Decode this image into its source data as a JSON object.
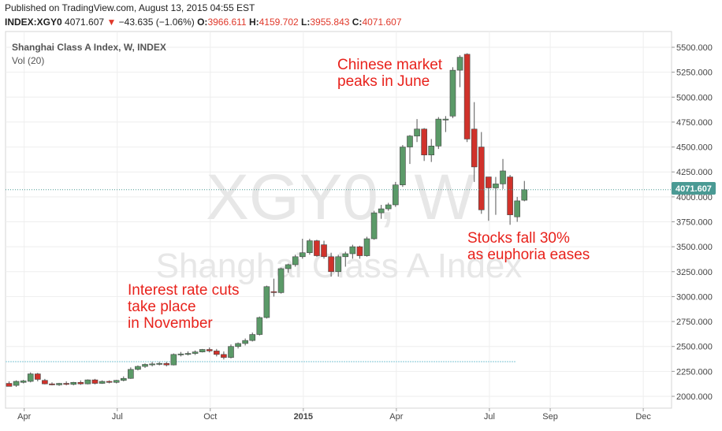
{
  "header": {
    "published": "Published on TradingView.com, August 13, 2015 04:55 EST",
    "symbol": "INDEX:XGY0",
    "last": "4071.607",
    "change_arrow": "▼",
    "change": "−43.635 (−1.06%)",
    "open_label": "O:",
    "open": "3966.611",
    "high_label": "H:",
    "high": "4159.702",
    "low_label": "L:",
    "low": "3955.843",
    "close_label": "C:",
    "close": "4071.607"
  },
  "legend": {
    "title": "Shanghai Class A Index, W, INDEX",
    "volume": "Vol (20)"
  },
  "watermark": {
    "big": "XGY0, W",
    "small": "Shanghai Class A Index"
  },
  "price_badge": "4071.607",
  "annotations": [
    {
      "lines": [
        "Chinese market",
        "peaks in June"
      ]
    },
    {
      "lines": [
        "Stocks fall 30%",
        "as euphoria eases"
      ]
    },
    {
      "lines": [
        "Interest rate cuts",
        "take place",
        "in November"
      ]
    }
  ],
  "colors": {
    "up": "#5b9a68",
    "down": "#d0322b",
    "annotation": "#e8221c",
    "price_line": "#4a9a94",
    "badge": "#4a9a94"
  },
  "chart_data": {
    "type": "candlestick",
    "title": "Shanghai Class A Index, W, INDEX",
    "interval": "weekly",
    "ylim": [
      1900,
      5600
    ],
    "y_ticks": [
      "5500.000",
      "5250.000",
      "5000.000",
      "4750.000",
      "4500.000",
      "4250.000",
      "4000.000",
      "3750.000",
      "3500.000",
      "3250.000",
      "3000.000",
      "2750.000",
      "2500.000",
      "2250.000",
      "2000.000"
    ],
    "x_ticks": [
      "Apr",
      "Jul",
      "Oct",
      "2015",
      "Apr",
      "Jul",
      "Sep",
      "Dec"
    ],
    "x_ticks_week_index": [
      2.5,
      15.5,
      28.5,
      41.5,
      54.5,
      67.5,
      76,
      89
    ],
    "last_price": 4071.607,
    "candles": [
      {
        "o": 2130,
        "h": 2150,
        "l": 2110,
        "c": 2100
      },
      {
        "o": 2110,
        "h": 2160,
        "l": 2095,
        "c": 2150
      },
      {
        "o": 2140,
        "h": 2165,
        "l": 2130,
        "c": 2155
      },
      {
        "o": 2150,
        "h": 2240,
        "l": 2140,
        "c": 2225
      },
      {
        "o": 2225,
        "h": 2235,
        "l": 2150,
        "c": 2170
      },
      {
        "o": 2160,
        "h": 2175,
        "l": 2120,
        "c": 2125
      },
      {
        "o": 2125,
        "h": 2140,
        "l": 2110,
        "c": 2115
      },
      {
        "o": 2115,
        "h": 2135,
        "l": 2105,
        "c": 2130
      },
      {
        "o": 2130,
        "h": 2150,
        "l": 2110,
        "c": 2120
      },
      {
        "o": 2120,
        "h": 2145,
        "l": 2110,
        "c": 2140
      },
      {
        "o": 2140,
        "h": 2160,
        "l": 2115,
        "c": 2125
      },
      {
        "o": 2125,
        "h": 2170,
        "l": 2120,
        "c": 2165
      },
      {
        "o": 2165,
        "h": 2175,
        "l": 2120,
        "c": 2130
      },
      {
        "o": 2130,
        "h": 2160,
        "l": 2125,
        "c": 2150
      },
      {
        "o": 2150,
        "h": 2160,
        "l": 2130,
        "c": 2140
      },
      {
        "o": 2140,
        "h": 2165,
        "l": 2130,
        "c": 2160
      },
      {
        "o": 2160,
        "h": 2200,
        "l": 2150,
        "c": 2180
      },
      {
        "o": 2180,
        "h": 2290,
        "l": 2175,
        "c": 2270
      },
      {
        "o": 2270,
        "h": 2310,
        "l": 2260,
        "c": 2300
      },
      {
        "o": 2300,
        "h": 2330,
        "l": 2285,
        "c": 2320
      },
      {
        "o": 2320,
        "h": 2345,
        "l": 2300,
        "c": 2325
      },
      {
        "o": 2325,
        "h": 2345,
        "l": 2310,
        "c": 2330
      },
      {
        "o": 2330,
        "h": 2345,
        "l": 2300,
        "c": 2315
      },
      {
        "o": 2315,
        "h": 2430,
        "l": 2310,
        "c": 2420
      },
      {
        "o": 2420,
        "h": 2445,
        "l": 2400,
        "c": 2425
      },
      {
        "o": 2425,
        "h": 2450,
        "l": 2410,
        "c": 2430
      },
      {
        "o": 2430,
        "h": 2460,
        "l": 2415,
        "c": 2445
      },
      {
        "o": 2445,
        "h": 2475,
        "l": 2440,
        "c": 2470
      },
      {
        "o": 2470,
        "h": 2490,
        "l": 2440,
        "c": 2455
      },
      {
        "o": 2455,
        "h": 2475,
        "l": 2400,
        "c": 2420
      },
      {
        "o": 2420,
        "h": 2450,
        "l": 2370,
        "c": 2390
      },
      {
        "o": 2390,
        "h": 2520,
        "l": 2380,
        "c": 2500
      },
      {
        "o": 2500,
        "h": 2540,
        "l": 2480,
        "c": 2530
      },
      {
        "o": 2530,
        "h": 2580,
        "l": 2510,
        "c": 2560
      },
      {
        "o": 2560,
        "h": 2640,
        "l": 2550,
        "c": 2620
      },
      {
        "o": 2620,
        "h": 2800,
        "l": 2610,
        "c": 2790
      },
      {
        "o": 2790,
        "h": 3110,
        "l": 2780,
        "c": 3100
      },
      {
        "o": 3050,
        "h": 3180,
        "l": 3000,
        "c": 3040
      },
      {
        "o": 3040,
        "h": 3290,
        "l": 3030,
        "c": 3280
      },
      {
        "o": 3280,
        "h": 3330,
        "l": 3240,
        "c": 3320
      },
      {
        "o": 3320,
        "h": 3420,
        "l": 3300,
        "c": 3400
      },
      {
        "o": 3400,
        "h": 3580,
        "l": 3380,
        "c": 3440
      },
      {
        "o": 3440,
        "h": 3580,
        "l": 3420,
        "c": 3560
      },
      {
        "o": 3560,
        "h": 3570,
        "l": 3400,
        "c": 3410
      },
      {
        "o": 3520,
        "h": 3560,
        "l": 3380,
        "c": 3400
      },
      {
        "o": 3400,
        "h": 3440,
        "l": 3200,
        "c": 3250
      },
      {
        "o": 3250,
        "h": 3420,
        "l": 3200,
        "c": 3400
      },
      {
        "o": 3400,
        "h": 3450,
        "l": 3300,
        "c": 3430
      },
      {
        "o": 3430,
        "h": 3520,
        "l": 3380,
        "c": 3500
      },
      {
        "o": 3500,
        "h": 3510,
        "l": 3380,
        "c": 3410
      },
      {
        "o": 3410,
        "h": 3600,
        "l": 3400,
        "c": 3580
      },
      {
        "o": 3580,
        "h": 3860,
        "l": 3570,
        "c": 3840
      },
      {
        "o": 3840,
        "h": 3920,
        "l": 3780,
        "c": 3880
      },
      {
        "o": 3880,
        "h": 3940,
        "l": 3860,
        "c": 3920
      },
      {
        "o": 3920,
        "h": 4150,
        "l": 3900,
        "c": 4120
      },
      {
        "o": 4120,
        "h": 4520,
        "l": 4100,
        "c": 4500
      },
      {
        "o": 4500,
        "h": 4620,
        "l": 4330,
        "c": 4610
      },
      {
        "o": 4610,
        "h": 4780,
        "l": 4550,
        "c": 4680
      },
      {
        "o": 4680,
        "h": 4690,
        "l": 4360,
        "c": 4420
      },
      {
        "o": 4420,
        "h": 4580,
        "l": 4350,
        "c": 4510
      },
      {
        "o": 4510,
        "h": 4800,
        "l": 4480,
        "c": 4780
      },
      {
        "o": 4780,
        "h": 4810,
        "l": 4650,
        "c": 4780
      },
      {
        "o": 4810,
        "h": 5300,
        "l": 4790,
        "c": 5270
      },
      {
        "o": 5270,
        "h": 5420,
        "l": 5100,
        "c": 5400
      },
      {
        "o": 5430,
        "h": 5440,
        "l": 4550,
        "c": 4580
      },
      {
        "o": 4680,
        "h": 4950,
        "l": 4150,
        "c": 4300
      },
      {
        "o": 4500,
        "h": 4650,
        "l": 3830,
        "c": 3870
      },
      {
        "o": 4200,
        "h": 4200,
        "l": 3760,
        "c": 4090
      },
      {
        "o": 4090,
        "h": 4200,
        "l": 3820,
        "c": 4130
      },
      {
        "o": 4130,
        "h": 4380,
        "l": 4080,
        "c": 4260
      },
      {
        "o": 4200,
        "h": 4220,
        "l": 3720,
        "c": 3820
      },
      {
        "o": 3800,
        "h": 4000,
        "l": 3750,
        "c": 3960
      },
      {
        "o": 3966.611,
        "h": 4159.702,
        "l": 3955.843,
        "c": 4071.607
      }
    ]
  }
}
